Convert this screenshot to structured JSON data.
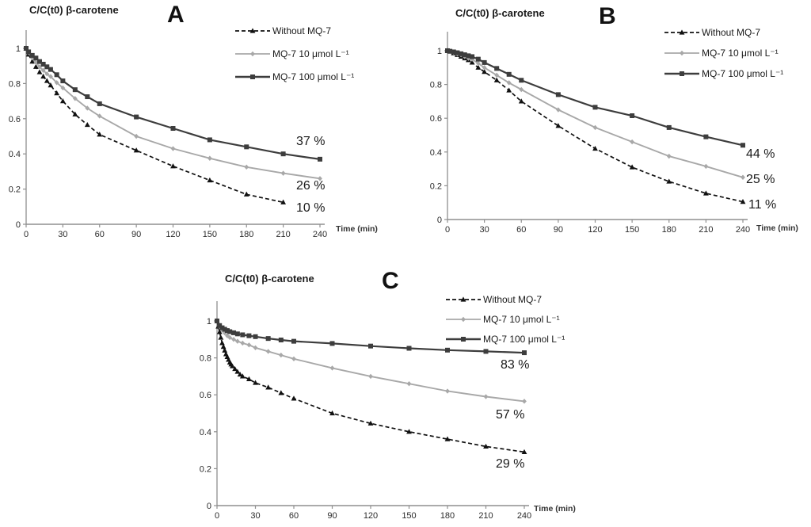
{
  "chart_data": [
    {
      "panel": "A",
      "type": "line",
      "title": "C/C(t0) β-carotene",
      "xlabel": "Time (min)",
      "ylabel": "",
      "xlim": [
        0,
        240
      ],
      "ylim": [
        0,
        1
      ],
      "xticks": [
        0,
        30,
        60,
        90,
        120,
        150,
        180,
        210,
        240
      ],
      "yticks": [
        0,
        0.2,
        0.4,
        0.6,
        0.8,
        1
      ],
      "grid": false,
      "legend_position": "top-right",
      "series": [
        {
          "name": "Without MQ-7",
          "style": "dashed",
          "marker": "triangle",
          "color": "#111111",
          "final_label": "10 %",
          "x": [
            0,
            2,
            5,
            8,
            11,
            14,
            17,
            20,
            25,
            30,
            40,
            50,
            60,
            90,
            120,
            150,
            180,
            210
          ],
          "y": [
            1.0,
            0.965,
            0.925,
            0.895,
            0.865,
            0.84,
            0.815,
            0.79,
            0.745,
            0.7,
            0.625,
            0.565,
            0.51,
            0.42,
            0.33,
            0.25,
            0.17,
            0.125
          ]
        },
        {
          "name": "MQ-7 10 μmol L⁻¹",
          "style": "solid",
          "marker": "diamond",
          "color": "#a8a8a8",
          "final_label": "26 %",
          "x": [
            0,
            2,
            5,
            8,
            11,
            14,
            17,
            20,
            25,
            30,
            40,
            50,
            60,
            90,
            120,
            150,
            180,
            210,
            240
          ],
          "y": [
            1.0,
            0.975,
            0.945,
            0.92,
            0.895,
            0.875,
            0.855,
            0.84,
            0.805,
            0.775,
            0.715,
            0.66,
            0.615,
            0.5,
            0.43,
            0.375,
            0.325,
            0.29,
            0.26
          ]
        },
        {
          "name": "MQ-7 100 μmol L⁻¹",
          "style": "solid",
          "marker": "square",
          "color": "#3d3d3d",
          "final_label": "37 %",
          "x": [
            0,
            2,
            5,
            8,
            11,
            14,
            17,
            20,
            25,
            30,
            40,
            50,
            60,
            90,
            120,
            150,
            180,
            210,
            240
          ],
          "y": [
            1.0,
            0.98,
            0.96,
            0.945,
            0.925,
            0.91,
            0.895,
            0.88,
            0.85,
            0.815,
            0.765,
            0.725,
            0.685,
            0.61,
            0.545,
            0.48,
            0.44,
            0.4,
            0.37
          ]
        }
      ]
    },
    {
      "panel": "B",
      "type": "line",
      "title": "C/C(t0) β-carotene",
      "xlabel": "Time (min)",
      "ylabel": "",
      "xlim": [
        0,
        240
      ],
      "ylim": [
        0,
        1
      ],
      "xticks": [
        0,
        30,
        60,
        90,
        120,
        150,
        180,
        210,
        240
      ],
      "yticks": [
        0,
        0.2,
        0.4,
        0.6,
        0.8,
        1
      ],
      "grid": false,
      "legend_position": "top-right",
      "series": [
        {
          "name": "Without MQ-7",
          "style": "dashed",
          "marker": "triangle",
          "color": "#111111",
          "final_label": "11 %",
          "x": [
            0,
            2,
            5,
            8,
            11,
            14,
            17,
            20,
            25,
            30,
            40,
            50,
            60,
            90,
            120,
            150,
            180,
            210,
            240
          ],
          "y": [
            1.0,
            0.995,
            0.985,
            0.975,
            0.965,
            0.955,
            0.945,
            0.93,
            0.9,
            0.875,
            0.825,
            0.765,
            0.7,
            0.555,
            0.42,
            0.31,
            0.225,
            0.155,
            0.105
          ]
        },
        {
          "name": "MQ-7 10 μmol L⁻¹",
          "style": "solid",
          "marker": "diamond",
          "color": "#a8a8a8",
          "final_label": "25 %",
          "x": [
            0,
            2,
            5,
            8,
            11,
            14,
            17,
            20,
            25,
            30,
            40,
            50,
            60,
            90,
            120,
            150,
            180,
            210,
            240
          ],
          "y": [
            1.0,
            0.995,
            0.99,
            0.98,
            0.975,
            0.965,
            0.955,
            0.95,
            0.925,
            0.9,
            0.855,
            0.81,
            0.77,
            0.65,
            0.545,
            0.46,
            0.375,
            0.315,
            0.25
          ]
        },
        {
          "name": "MQ-7 100 μmol L⁻¹",
          "style": "solid",
          "marker": "square",
          "color": "#3d3d3d",
          "final_label": "44 %",
          "x": [
            0,
            2,
            5,
            8,
            11,
            14,
            17,
            20,
            25,
            30,
            40,
            50,
            60,
            90,
            120,
            150,
            180,
            210,
            240
          ],
          "y": [
            1.0,
            0.997,
            0.993,
            0.988,
            0.982,
            0.976,
            0.97,
            0.965,
            0.95,
            0.93,
            0.895,
            0.86,
            0.825,
            0.74,
            0.665,
            0.615,
            0.545,
            0.49,
            0.44
          ]
        }
      ]
    },
    {
      "panel": "C",
      "type": "line",
      "title": "C/C(t0) β-carotene",
      "xlabel": "Time (min)",
      "ylabel": "",
      "xlim": [
        0,
        240
      ],
      "ylim": [
        0,
        1
      ],
      "xticks": [
        0,
        30,
        60,
        90,
        120,
        150,
        180,
        210,
        240
      ],
      "yticks": [
        0,
        0.2,
        0.4,
        0.6,
        0.8,
        1
      ],
      "grid": false,
      "legend_position": "top-right",
      "series": [
        {
          "name": "Without MQ-7",
          "style": "dashed",
          "marker": "triangle",
          "color": "#111111",
          "final_label": "29 %",
          "x": [
            0,
            1,
            2,
            3,
            4,
            5,
            6,
            7,
            8,
            9,
            10,
            11,
            12,
            14,
            16,
            18,
            20,
            25,
            30,
            40,
            50,
            60,
            90,
            120,
            150,
            180,
            210,
            240
          ],
          "y": [
            1.0,
            0.97,
            0.94,
            0.91,
            0.88,
            0.86,
            0.84,
            0.82,
            0.805,
            0.79,
            0.775,
            0.765,
            0.755,
            0.74,
            0.725,
            0.71,
            0.7,
            0.685,
            0.665,
            0.64,
            0.61,
            0.58,
            0.5,
            0.445,
            0.4,
            0.36,
            0.32,
            0.29
          ]
        },
        {
          "name": "MQ-7 10 μmol L⁻¹",
          "style": "solid",
          "marker": "diamond",
          "color": "#a8a8a8",
          "final_label": "57 %",
          "x": [
            0,
            2,
            4,
            6,
            8,
            10,
            13,
            16,
            20,
            25,
            30,
            40,
            50,
            60,
            90,
            120,
            150,
            180,
            210,
            240
          ],
          "y": [
            1.0,
            0.97,
            0.95,
            0.935,
            0.92,
            0.91,
            0.9,
            0.89,
            0.88,
            0.87,
            0.855,
            0.835,
            0.815,
            0.795,
            0.745,
            0.7,
            0.66,
            0.62,
            0.59,
            0.565
          ]
        },
        {
          "name": "MQ-7 100 μmol L⁻¹",
          "style": "solid",
          "marker": "square",
          "color": "#3d3d3d",
          "final_label": "83 %",
          "x": [
            0,
            2,
            4,
            6,
            8,
            10,
            13,
            16,
            20,
            25,
            30,
            40,
            50,
            60,
            90,
            120,
            150,
            180,
            210,
            240
          ],
          "y": [
            1.0,
            0.975,
            0.963,
            0.955,
            0.948,
            0.942,
            0.936,
            0.93,
            0.925,
            0.92,
            0.915,
            0.905,
            0.897,
            0.89,
            0.878,
            0.864,
            0.852,
            0.842,
            0.835,
            0.828
          ]
        }
      ]
    }
  ]
}
